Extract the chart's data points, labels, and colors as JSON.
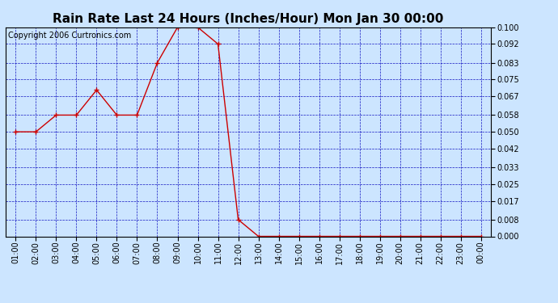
{
  "title": "Rain Rate Last 24 Hours (Inches/Hour) Mon Jan 30 00:00",
  "copyright": "Copyright 2006 Curtronics.com",
  "x_labels": [
    "01:00",
    "02:00",
    "03:00",
    "04:00",
    "05:00",
    "06:00",
    "07:00",
    "08:00",
    "09:00",
    "10:00",
    "11:00",
    "12:00",
    "13:00",
    "14:00",
    "15:00",
    "16:00",
    "17:00",
    "18:00",
    "19:00",
    "20:00",
    "21:00",
    "22:00",
    "23:00",
    "00:00"
  ],
  "x_values": [
    1,
    2,
    3,
    4,
    5,
    6,
    7,
    8,
    9,
    10,
    11,
    12,
    13,
    14,
    15,
    16,
    17,
    18,
    19,
    20,
    21,
    22,
    23,
    24
  ],
  "y_values": [
    0.05,
    0.05,
    0.058,
    0.058,
    0.07,
    0.058,
    0.058,
    0.083,
    0.1,
    0.1,
    0.092,
    0.008,
    0.0,
    0.0,
    0.0,
    0.0,
    0.0,
    0.0,
    0.0,
    0.0,
    0.0,
    0.0,
    0.0,
    0.0
  ],
  "y_ticks": [
    0.0,
    0.008,
    0.017,
    0.025,
    0.033,
    0.042,
    0.05,
    0.058,
    0.067,
    0.075,
    0.083,
    0.092,
    0.1
  ],
  "line_color": "#cc0000",
  "marker_color": "#cc0000",
  "bg_color": "#cce5ff",
  "plot_bg_color": "#cce5ff",
  "grid_color": "#0000bb",
  "title_fontsize": 11,
  "copyright_fontsize": 7,
  "tick_fontsize": 7,
  "ylim": [
    0.0,
    0.1
  ]
}
